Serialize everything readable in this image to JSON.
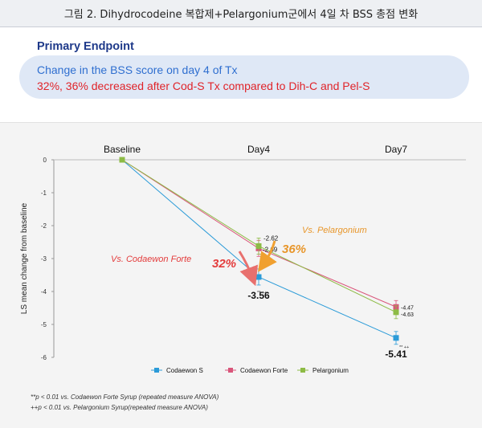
{
  "figure_caption": "그림 2. Dihydrocodeine 복합제+Pelargonium군에서 4일 차 BSS 총점 변화",
  "endpoint": {
    "title": "Primary Endpoint",
    "line1": "Change in the BSS score on day 4 of Tx",
    "line2": "32%, 36% decreased after Cod-S Tx compared to Dih-C and Pel-S"
  },
  "annotations": {
    "vs_codaewon": "Vs. Codaewon Forte",
    "vs_pelargonium": "Vs. Pelargonium",
    "pct_codaewon": "32%",
    "pct_pelargonium": "36%",
    "sig_day4": "** ++",
    "sig_day7": "** ++"
  },
  "footnotes": [
    "**p < 0.01 vs. Codaewon Forte Syrup (repeated measure ANOVA)",
    "++p < 0.01 vs. Pelargonium Syrup(repeated measure ANOVA)"
  ],
  "colors": {
    "codaewon_s": "#2b9bd8",
    "codaewon_forte": "#d9557a",
    "pelargonium": "#8dbb45",
    "arrow_red": "#e8706e",
    "arrow_orange": "#f0a030",
    "pct_red": "#e33b3b",
    "pct_orange": "#e8962a"
  },
  "chart_data": {
    "type": "line",
    "title": "",
    "xlabel": "",
    "ylabel": "LS mean change from baseline",
    "categories": [
      "Baseline",
      "Day4",
      "Day7"
    ],
    "ylim": [
      -6,
      0
    ],
    "yticks": [
      0,
      -1,
      -2,
      -3,
      -4,
      -5,
      -6
    ],
    "grid": false,
    "legend_position": "bottom",
    "series": [
      {
        "name": "Codaewon S",
        "values": [
          0,
          -3.56,
          -5.41
        ],
        "labels": [
          "",
          "-3.56",
          "-5.41"
        ],
        "marker": "square",
        "color": "#2b9bd8"
      },
      {
        "name": "Codaewon Forte",
        "values": [
          0,
          -2.69,
          -4.47
        ],
        "labels": [
          "",
          "-2.69",
          "-4.47"
        ],
        "marker": "square",
        "color": "#d9557a"
      },
      {
        "name": "Pelargonium",
        "values": [
          0,
          -2.62,
          -4.63
        ],
        "labels": [
          "",
          "-2.62",
          "-4.63"
        ],
        "marker": "square",
        "color": "#8dbb45"
      }
    ]
  }
}
